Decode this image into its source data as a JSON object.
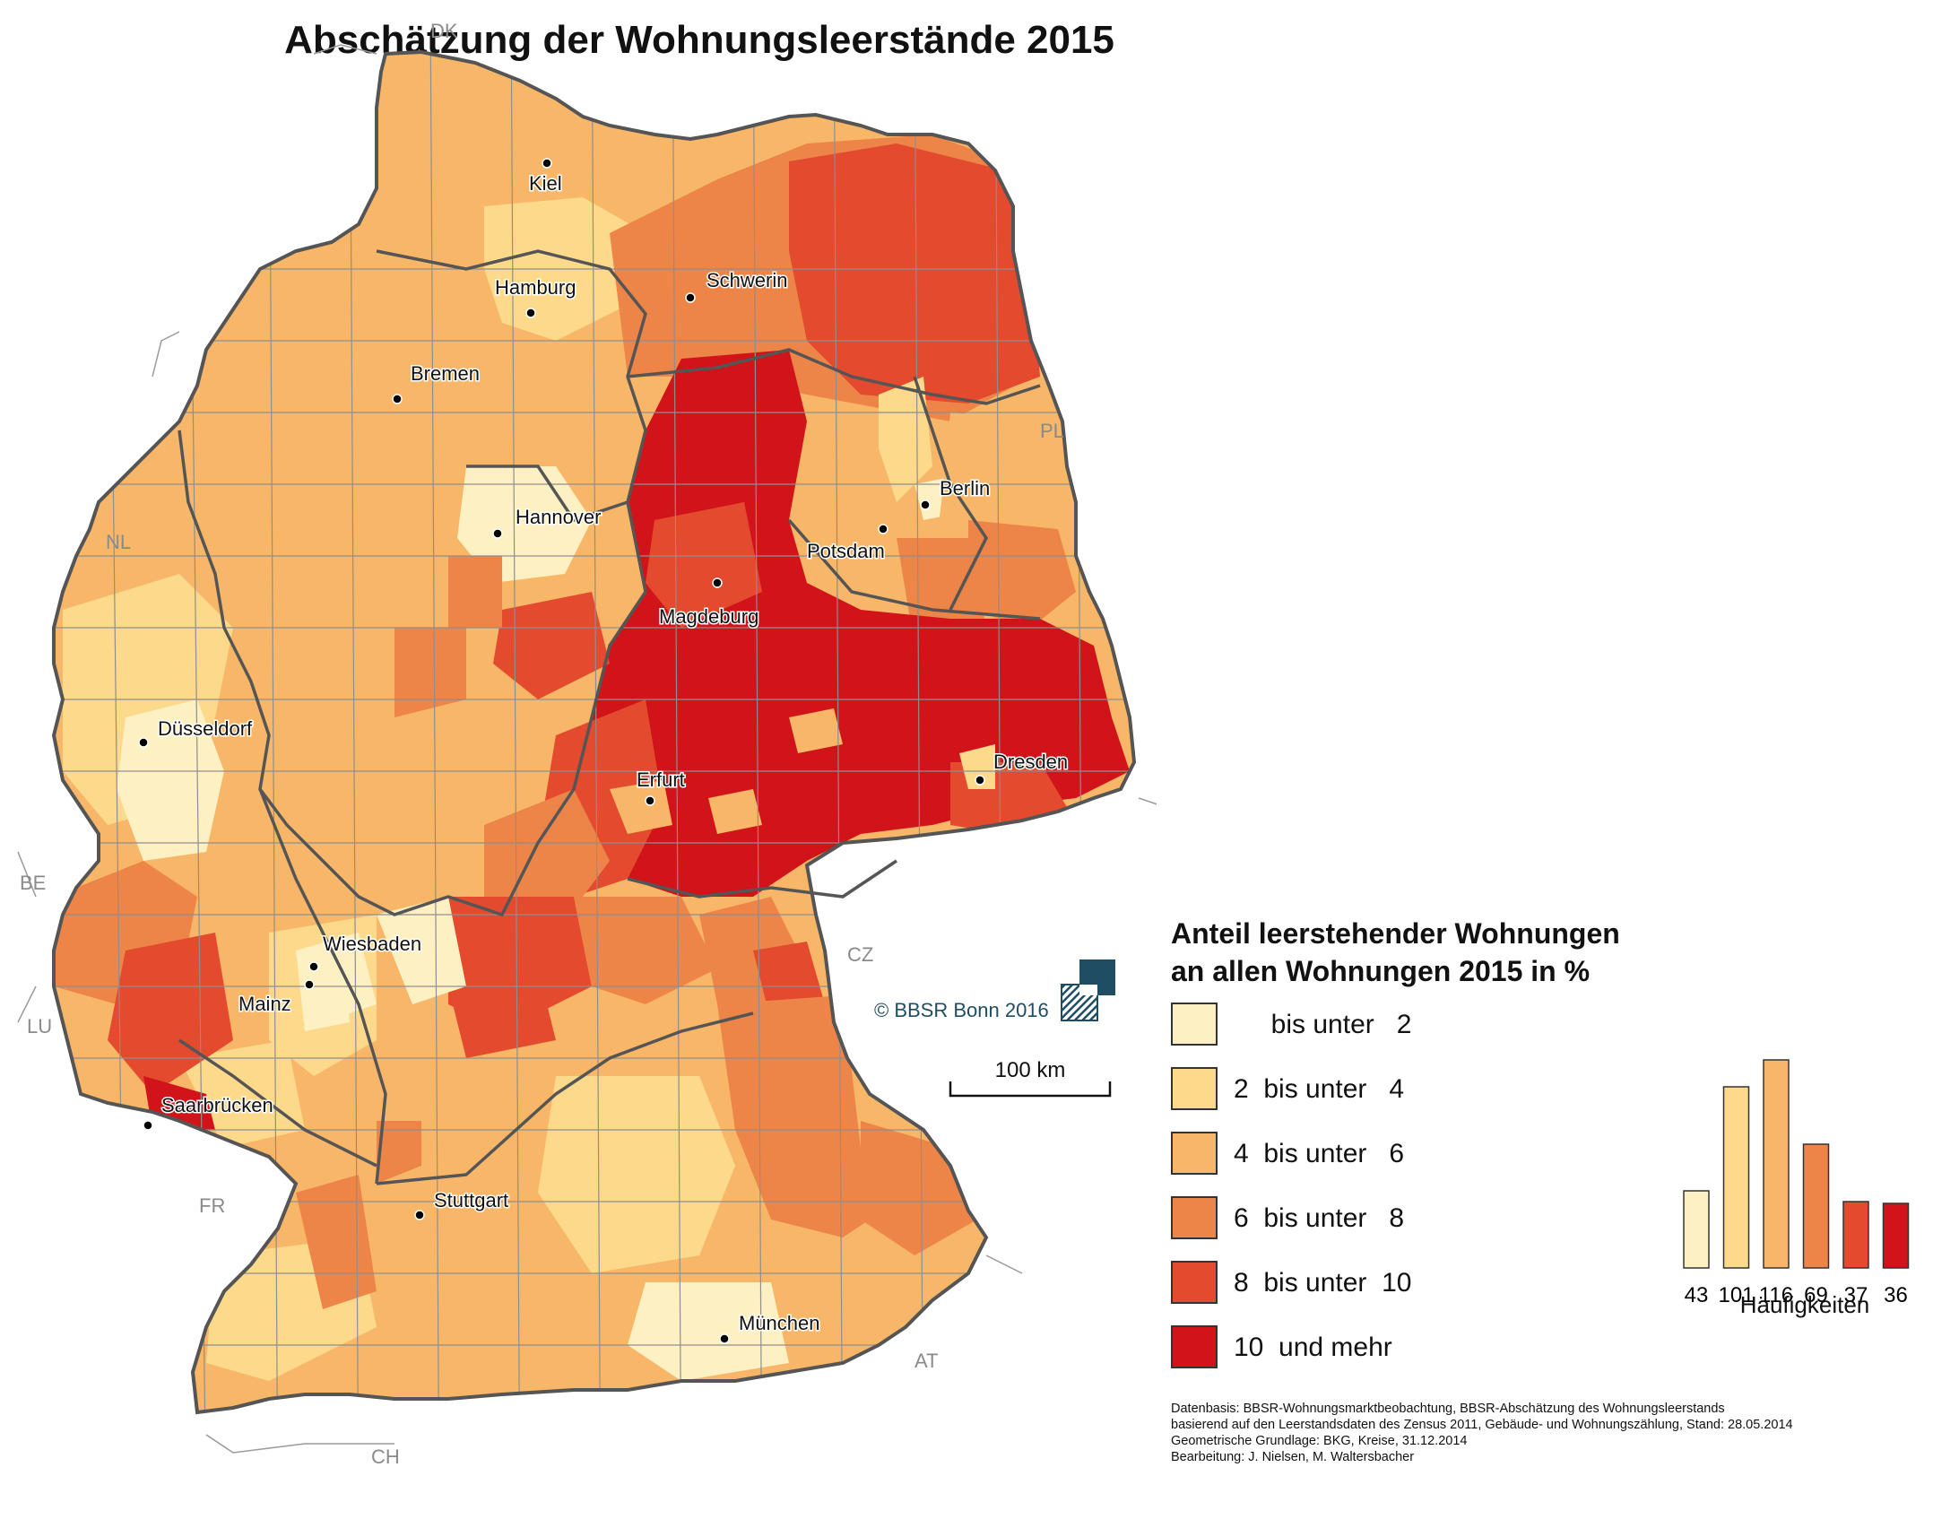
{
  "title": "Abschätzung der Wohnungsleerstände 2015",
  "cities": [
    {
      "name": "Kiel",
      "dot_icon": "city-dot-icon"
    },
    {
      "name": "Hamburg"
    },
    {
      "name": "Schwerin"
    },
    {
      "name": "Bremen"
    },
    {
      "name": "Hannover"
    },
    {
      "name": "Berlin"
    },
    {
      "name": "Potsdam"
    },
    {
      "name": "Magdeburg"
    },
    {
      "name": "Düsseldorf"
    },
    {
      "name": "Erfurt"
    },
    {
      "name": "Dresden"
    },
    {
      "name": "Wiesbaden"
    },
    {
      "name": "Mainz"
    },
    {
      "name": "Saarbrücken"
    },
    {
      "name": "Stuttgart"
    },
    {
      "name": "München"
    }
  ],
  "countries": [
    "DK",
    "NL",
    "PL",
    "BE",
    "LU",
    "CZ",
    "FR",
    "AT",
    "CH"
  ],
  "legend": {
    "title_line1": "Anteil leerstehender Wohnungen",
    "title_line2": "an allen Wohnungen 2015 in %",
    "classes": [
      {
        "label": "     bis unter   2",
        "color": "#fdf0c2"
      },
      {
        "label": "2  bis unter   4",
        "color": "#fdd98b"
      },
      {
        "label": "4  bis unter   6",
        "color": "#f8b768"
      },
      {
        "label": "6  bis unter   8",
        "color": "#ee8548"
      },
      {
        "label": "8  bis unter  10",
        "color": "#e34a2e"
      },
      {
        "label": "10  und mehr",
        "color": "#d0141a"
      }
    ]
  },
  "copyright": "©  BBSR Bonn 2016",
  "scalebar_label": "100 km",
  "chart_data": {
    "type": "bar",
    "categories": [
      "bis unter 2",
      "2 bis unter 4",
      "4 bis unter 6",
      "6 bis unter 8",
      "8 bis unter 10",
      "10 und mehr"
    ],
    "values": [
      43,
      101,
      116,
      69,
      37,
      36
    ],
    "tick_labels": [
      "43",
      "101",
      "116",
      "69",
      "37",
      "36"
    ],
    "xlabel": "Häufigkeiten",
    "colors": [
      "#fdf0c2",
      "#fdd98b",
      "#f8b768",
      "#ee8548",
      "#e34a2e",
      "#d0141a"
    ]
  },
  "sources": [
    "Datenbasis: BBSR-Wohnungsmarktbeobachtung, BBSR-Abschätzung des Wohnungsleerstands",
    "basierend auf den Leerstandsdaten des Zensus 2011, Gebäude- und Wohnungszählung, Stand: 28.05.2014",
    "Geometrische Grundlage: BKG, Kreise, 31.12.2014",
    "Bearbeitung: J. Nielsen, M. Waltersbacher"
  ]
}
